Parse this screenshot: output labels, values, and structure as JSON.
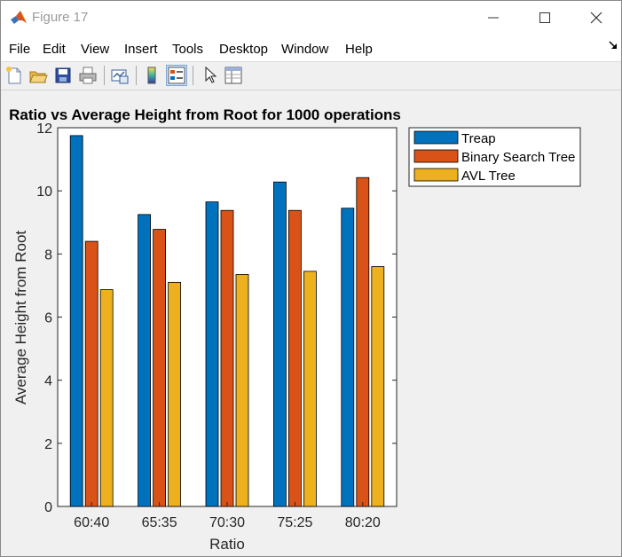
{
  "window": {
    "title": "Figure 17"
  },
  "menu": [
    "File",
    "Edit",
    "View",
    "Insert",
    "Tools",
    "Desktop",
    "Window",
    "Help"
  ],
  "toolbar_icons": [
    "new-figure-icon",
    "open-file-icon",
    "save-icon",
    "print-icon",
    "link-plot-icon",
    "insert-colorbar-icon",
    "insert-legend-icon",
    "pointer-icon",
    "property-inspector-icon"
  ],
  "colors": {
    "treap": "#0072bd",
    "bst": "#d95319",
    "avl": "#edb120"
  },
  "chart_data": {
    "type": "bar",
    "title": "Ratio vs Average Height from Root for 1000 operations",
    "xlabel": "Ratio",
    "ylabel": "Average Height from Root",
    "categories": [
      "60:40",
      "65:35",
      "70:30",
      "75:25",
      "80:20"
    ],
    "ylim": [
      0,
      12
    ],
    "yticks": [
      "0",
      "2",
      "4",
      "6",
      "8",
      "10",
      "12"
    ],
    "legend_position": "outside-top-right",
    "grid": false,
    "series": [
      {
        "name": "Treap",
        "color": "#0072bd",
        "values": [
          11.75,
          9.25,
          9.65,
          10.28,
          9.45
        ]
      },
      {
        "name": "Binary Search Tree",
        "color": "#d95319",
        "values": [
          8.4,
          8.78,
          9.38,
          9.38,
          10.42
        ]
      },
      {
        "name": "AVL Tree",
        "color": "#edb120",
        "values": [
          6.87,
          7.1,
          7.35,
          7.45,
          7.6
        ]
      }
    ]
  }
}
